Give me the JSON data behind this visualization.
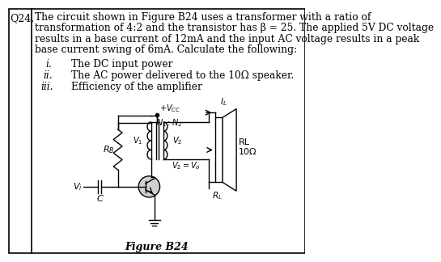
{
  "question_num": "Q24.",
  "text_line1": "The circuit shown in Figure B24 uses a transformer with a ratio of",
  "text_line2": "transformation of 4:2 and the transistor has β = 25. The applied 5V DC voltage",
  "text_line3": "results in a base current of 12mA and the input AC voltage results in a peak",
  "text_line4": "base current swing of 6mA. Calculate the following:",
  "item_i": "i.",
  "item_i_text": "The DC input power",
  "item_ii": "ii.",
  "item_ii_text": "The AC power delivered to the 10Ω speaker.",
  "item_iii": "iii.",
  "item_iii_text": "Efficiency of the amplifier",
  "figure_label": "Figure B24",
  "RL_label": "RL\n10Ω",
  "RB_label": "$R_B$",
  "Vi_label": "$V_i$",
  "C_label": "C",
  "Vcc_label": "$+V_{CC}$",
  "N1N2_label": "$N_1 : N_2$",
  "V1_label": "$V_1$",
  "V2_label": "$V_2$",
  "V2Vo_label": "$V_2 = V_o$",
  "IL_label": "$I_L$",
  "RL2_label": "$R_L$",
  "bg_color": "#ffffff",
  "text_color": "#000000",
  "border_color": "#000000",
  "lw": 1.0
}
